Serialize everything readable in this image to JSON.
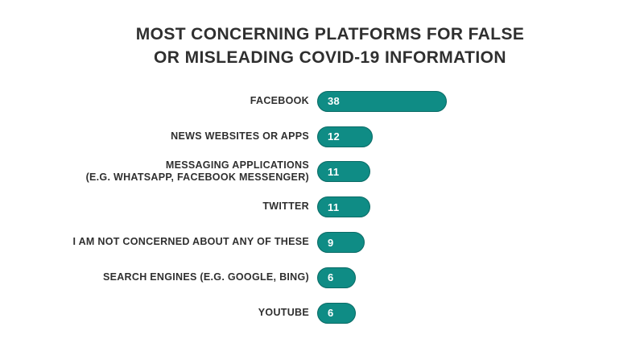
{
  "header": {
    "title_lines": [
      "MOST CONCERNING PLATFORMS FOR FALSE",
      "OR MISLEADING COVID-19 INFORMATION"
    ]
  },
  "chart_data": {
    "type": "bar",
    "orientation": "horizontal",
    "title": "MOST CONCERNING PLATFORMS FOR FALSE OR MISLEADING COVID-19 INFORMATION",
    "categories": [
      "FACEBOOK",
      "NEWS WEBSITES OR APPS",
      "MESSAGING APPLICATIONS (E.G. WHATSAPP, FACEBOOK MESSENGER)",
      "TWITTER",
      "I AM NOT CONCERNED ABOUT ANY OF THESE",
      "SEARCH ENGINES (E.G. GOOGLE, BING)",
      "YOUTUBE"
    ],
    "values": [
      38,
      12,
      11,
      11,
      9,
      6,
      6
    ],
    "rows": [
      {
        "label_lines": [
          "FACEBOOK"
        ],
        "value": 38
      },
      {
        "label_lines": [
          "NEWS WEBSITES OR APPS"
        ],
        "value": 12
      },
      {
        "label_lines": [
          "MESSAGING APPLICATIONS",
          "(E.G. WHATSAPP, FACEBOOK MESSENGER)"
        ],
        "value": 11
      },
      {
        "label_lines": [
          "TWITTER"
        ],
        "value": 11
      },
      {
        "label_lines": [
          "I AM NOT CONCERNED ABOUT ANY OF THESE"
        ],
        "value": 9
      },
      {
        "label_lines": [
          "SEARCH ENGINES (E.G. GOOGLE, BING)"
        ],
        "value": 6
      },
      {
        "label_lines": [
          "YOUTUBE"
        ],
        "value": 6
      }
    ],
    "value_label_position": "inside-left",
    "bar_color": "#0f8c85",
    "bar_border_color": "#0a6b66",
    "value_text_color": "#ffffff",
    "label_text_color": "#2f2f2f",
    "background": "#ffffff",
    "xlim": [
      0,
      40
    ],
    "grid": false,
    "legend": false
  }
}
